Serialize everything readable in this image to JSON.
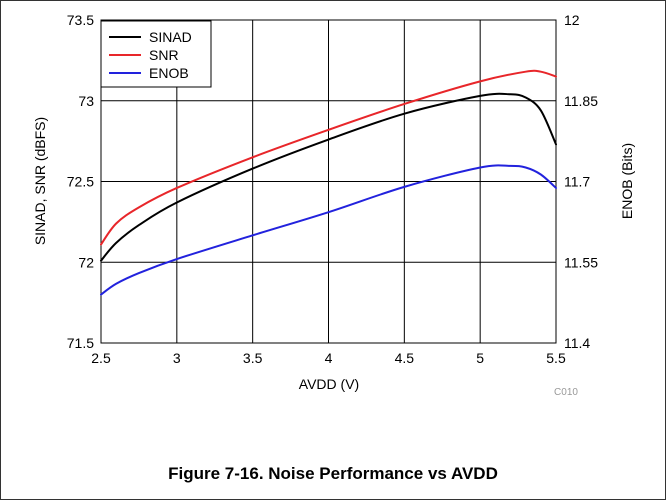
{
  "figure": {
    "caption": "Figure 7-16. Noise Performance vs AVDD",
    "code": "C010"
  },
  "chart_data": {
    "type": "line",
    "xlabel": "AVDD (V)",
    "ylabel": "SINAD, SNR (dBFS)",
    "y2label": "ENOB (Bits)",
    "xlim": [
      2.5,
      5.5
    ],
    "ylim": [
      71.5,
      73.5
    ],
    "y2lim": [
      11.4,
      12.0
    ],
    "xticks": [
      "2.5",
      "3",
      "3.5",
      "4",
      "4.5",
      "5",
      "5.5"
    ],
    "yticks": [
      "71.5",
      "72",
      "72.5",
      "73",
      "73.5"
    ],
    "y2ticks": [
      "11.4",
      "11.55",
      "11.7",
      "11.85",
      "12"
    ],
    "grid": true,
    "legend_position": "top-left",
    "colors": {
      "SINAD": "#000000",
      "SNR": "#e8262a",
      "ENOB": "#2222dd"
    },
    "series": [
      {
        "name": "SINAD",
        "axis": "left",
        "x": [
          2.5,
          2.6,
          2.75,
          3.0,
          3.5,
          4.0,
          4.5,
          5.0,
          5.2,
          5.3,
          5.4,
          5.5
        ],
        "y": [
          72.01,
          72.12,
          72.23,
          72.37,
          72.58,
          72.76,
          72.92,
          73.03,
          73.04,
          73.02,
          72.94,
          72.73
        ]
      },
      {
        "name": "SNR",
        "axis": "left",
        "x": [
          2.5,
          2.6,
          2.75,
          3.0,
          3.5,
          4.0,
          4.5,
          5.0,
          5.3,
          5.4,
          5.5
        ],
        "y": [
          72.11,
          72.24,
          72.34,
          72.46,
          72.65,
          72.82,
          72.98,
          73.12,
          73.18,
          73.18,
          73.15
        ]
      },
      {
        "name": "ENOB",
        "axis": "right",
        "x": [
          2.5,
          2.6,
          2.75,
          3.0,
          3.5,
          4.0,
          4.5,
          5.0,
          5.2,
          5.3,
          5.4,
          5.5
        ],
        "y": [
          11.49,
          11.51,
          11.53,
          11.556,
          11.6,
          11.643,
          11.69,
          11.726,
          11.729,
          11.726,
          11.713,
          11.688
        ]
      }
    ]
  }
}
